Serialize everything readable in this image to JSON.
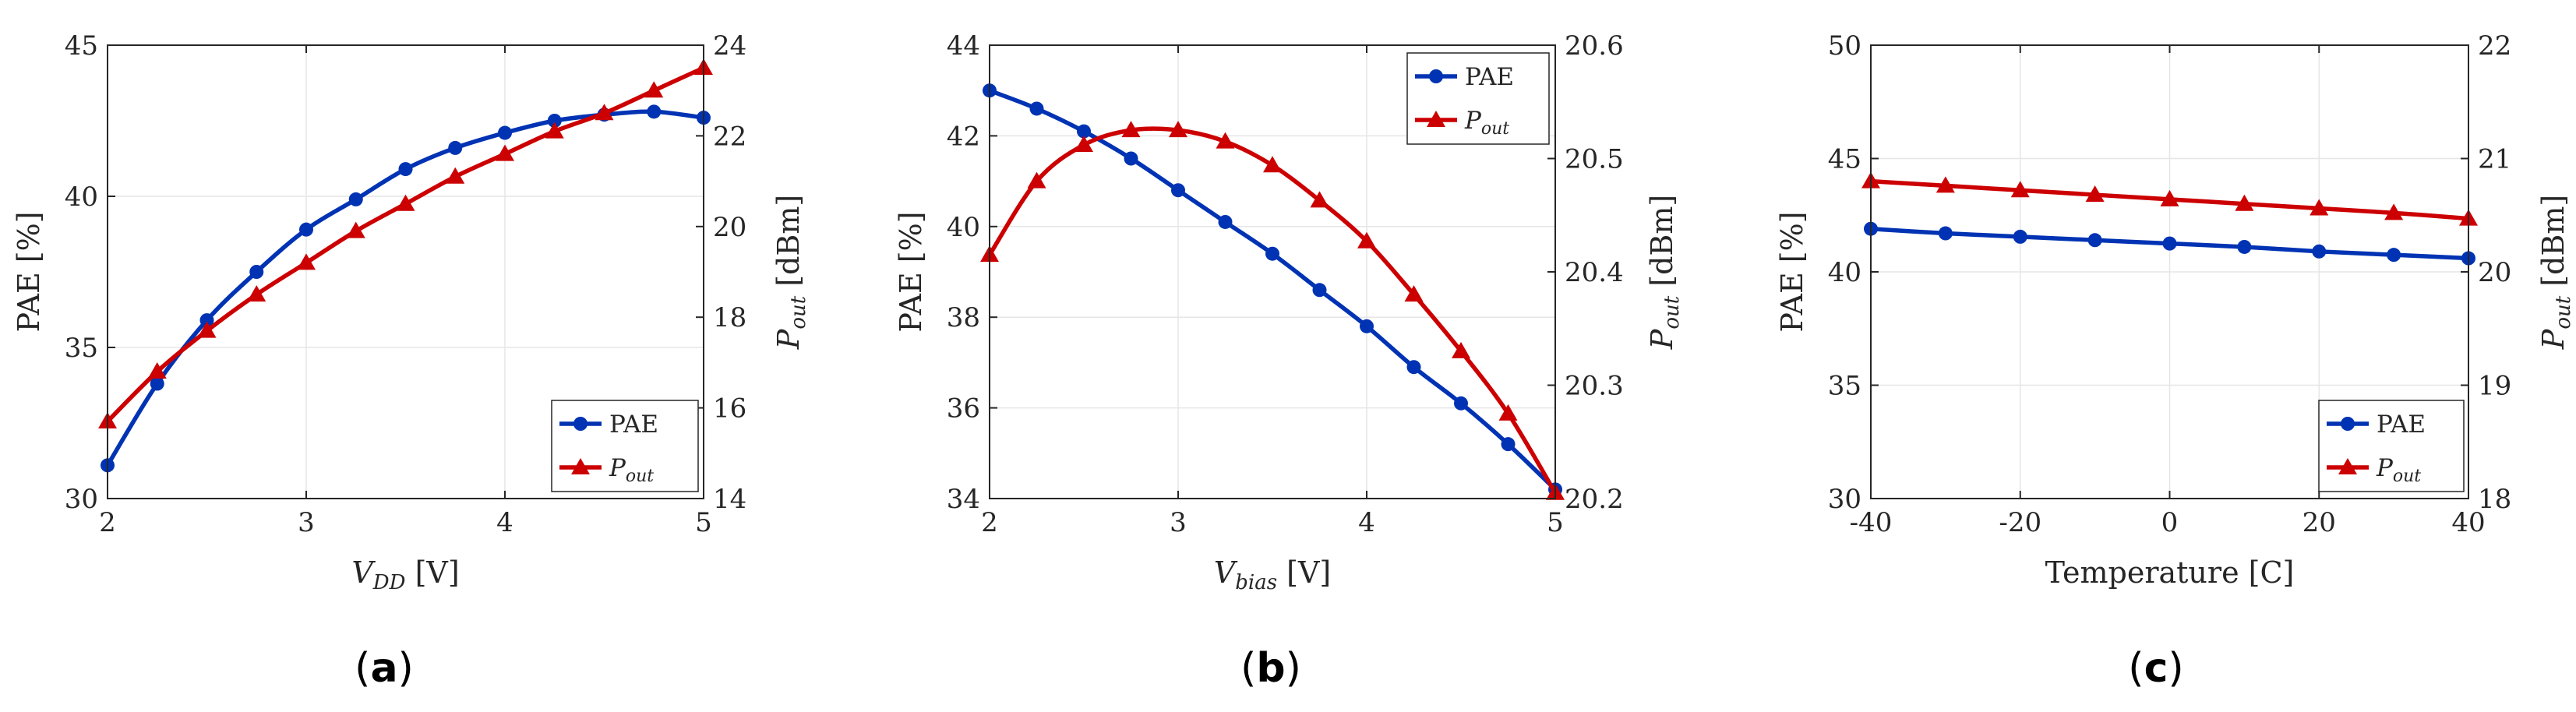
{
  "chart_data": [
    {
      "type": "line",
      "panel_label": "a",
      "xlabel": "V_DD [V]",
      "xlabel_main": "V",
      "xlabel_sub": "DD",
      "xlabel_unit": " [V]",
      "ylabel_left": "PAE [%]",
      "ylabel_right_main": "P",
      "ylabel_right_sub": "out",
      "ylabel_right_unit": " [dBm]",
      "xlim": [
        2,
        5
      ],
      "xticks": [
        "2",
        "3",
        "4",
        "5"
      ],
      "ylim_left": [
        30,
        45
      ],
      "yticks_left": [
        "30",
        "35",
        "40",
        "45"
      ],
      "ylim_right": [
        14,
        24
      ],
      "yticks_right": [
        "14",
        "16",
        "18",
        "20",
        "22",
        "24"
      ],
      "grid": true,
      "legend_position": "bottom-right",
      "series": [
        {
          "name": "PAE",
          "axis": "left",
          "marker": "circle",
          "color": "#0033b3",
          "x": [
            2,
            2.25,
            2.5,
            2.75,
            3,
            3.25,
            3.5,
            3.75,
            4,
            4.25,
            4.5,
            4.75,
            5
          ],
          "values": [
            31.1,
            33.8,
            35.9,
            37.5,
            38.9,
            39.9,
            40.9,
            41.6,
            42.1,
            42.5,
            42.7,
            42.8,
            42.6
          ]
        },
        {
          "name": "P_out",
          "legend_main": "P",
          "legend_sub": "out",
          "axis": "right",
          "marker": "triangle",
          "color": "#cc0000",
          "x": [
            2,
            2.25,
            2.5,
            2.75,
            3,
            3.25,
            3.5,
            3.75,
            4,
            4.25,
            4.5,
            4.75,
            5
          ],
          "values": [
            15.7,
            16.8,
            17.7,
            18.5,
            19.2,
            19.9,
            20.5,
            21.1,
            21.6,
            22.1,
            22.5,
            23.0,
            23.5
          ]
        }
      ]
    },
    {
      "type": "line",
      "panel_label": "b",
      "xlabel": "V_bias [V]",
      "xlabel_main": "V",
      "xlabel_sub": "bias",
      "xlabel_unit": " [V]",
      "ylabel_left": "PAE [%]",
      "ylabel_right_main": "P",
      "ylabel_right_sub": "out",
      "ylabel_right_unit": " [dBm]",
      "xlim": [
        2,
        5
      ],
      "xticks": [
        "2",
        "3",
        "4",
        "5"
      ],
      "ylim_left": [
        34,
        44
      ],
      "yticks_left": [
        "34",
        "36",
        "38",
        "40",
        "42",
        "44"
      ],
      "ylim_right": [
        20.2,
        20.6
      ],
      "yticks_right": [
        "20.2",
        "20.3",
        "20.4",
        "20.5",
        "20.6"
      ],
      "grid": true,
      "legend_position": "top-right",
      "series": [
        {
          "name": "PAE",
          "axis": "left",
          "marker": "circle",
          "color": "#0033b3",
          "x": [
            2,
            2.25,
            2.5,
            2.75,
            3,
            3.25,
            3.5,
            3.75,
            4,
            4.25,
            4.5,
            4.75,
            5
          ],
          "values": [
            43.0,
            42.6,
            42.1,
            41.5,
            40.8,
            40.1,
            39.4,
            38.6,
            37.8,
            36.9,
            36.1,
            35.2,
            34.2
          ]
        },
        {
          "name": "P_out",
          "legend_main": "P",
          "legend_sub": "out",
          "axis": "right",
          "marker": "triangle",
          "color": "#cc0000",
          "x": [
            2,
            2.25,
            2.5,
            2.75,
            3,
            3.25,
            3.5,
            3.75,
            4,
            4.25,
            4.5,
            4.75,
            5
          ],
          "values": [
            20.415,
            20.48,
            20.512,
            20.525,
            20.525,
            20.515,
            20.494,
            20.463,
            20.427,
            20.38,
            20.33,
            20.275,
            20.205
          ]
        }
      ]
    },
    {
      "type": "line",
      "panel_label": "c",
      "xlabel": "Temperature [C]",
      "xlabel_main": "Temperature [C]",
      "xlabel_sub": "",
      "xlabel_unit": "",
      "ylabel_left": "PAE [%]",
      "ylabel_right_main": "P",
      "ylabel_right_sub": "out",
      "ylabel_right_unit": " [dBm]",
      "xlim": [
        -40,
        40
      ],
      "xticks": [
        "-40",
        "-20",
        "0",
        "20",
        "40"
      ],
      "ylim_left": [
        30,
        50
      ],
      "yticks_left": [
        "30",
        "35",
        "40",
        "45",
        "50"
      ],
      "ylim_right": [
        18,
        22
      ],
      "yticks_right": [
        "18",
        "19",
        "20",
        "21",
        "22"
      ],
      "grid": true,
      "legend_position": "bottom-right",
      "series": [
        {
          "name": "PAE",
          "axis": "left",
          "marker": "circle",
          "color": "#0033b3",
          "x": [
            -40,
            -30,
            -20,
            -10,
            0,
            10,
            20,
            30,
            40
          ],
          "values": [
            41.9,
            41.7,
            41.55,
            41.4,
            41.25,
            41.1,
            40.9,
            40.75,
            40.6
          ]
        },
        {
          "name": "P_out",
          "legend_main": "P",
          "legend_sub": "out",
          "axis": "right",
          "marker": "triangle",
          "color": "#cc0000",
          "x": [
            -40,
            -30,
            -20,
            -10,
            0,
            10,
            20,
            30,
            40
          ],
          "values": [
            20.8,
            20.76,
            20.72,
            20.68,
            20.64,
            20.6,
            20.56,
            20.52,
            20.47
          ]
        }
      ]
    }
  ]
}
